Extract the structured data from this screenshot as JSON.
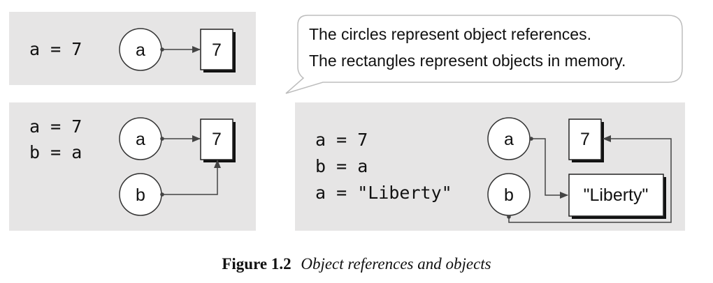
{
  "panel1": {
    "code": [
      "a = 7"
    ],
    "refs": [
      "a"
    ],
    "objects": [
      "7"
    ]
  },
  "panel2": {
    "code": [
      "a = 7",
      "b = a"
    ],
    "refs": [
      "a",
      "b"
    ],
    "objects": [
      "7"
    ]
  },
  "panel3": {
    "code": [
      "a = 7",
      "b = a",
      "a = \"Liberty\""
    ],
    "refs": [
      "a",
      "b"
    ],
    "objects": [
      "7",
      "\"Liberty\""
    ]
  },
  "bubble": {
    "lines": [
      "The circles represent object references.",
      "The rectangles represent objects in memory."
    ]
  },
  "caption": {
    "number": "Figure 1.2",
    "title": "Object references and objects"
  },
  "colors": {
    "panel_background": "#e6e5e5",
    "line": "#444444"
  }
}
